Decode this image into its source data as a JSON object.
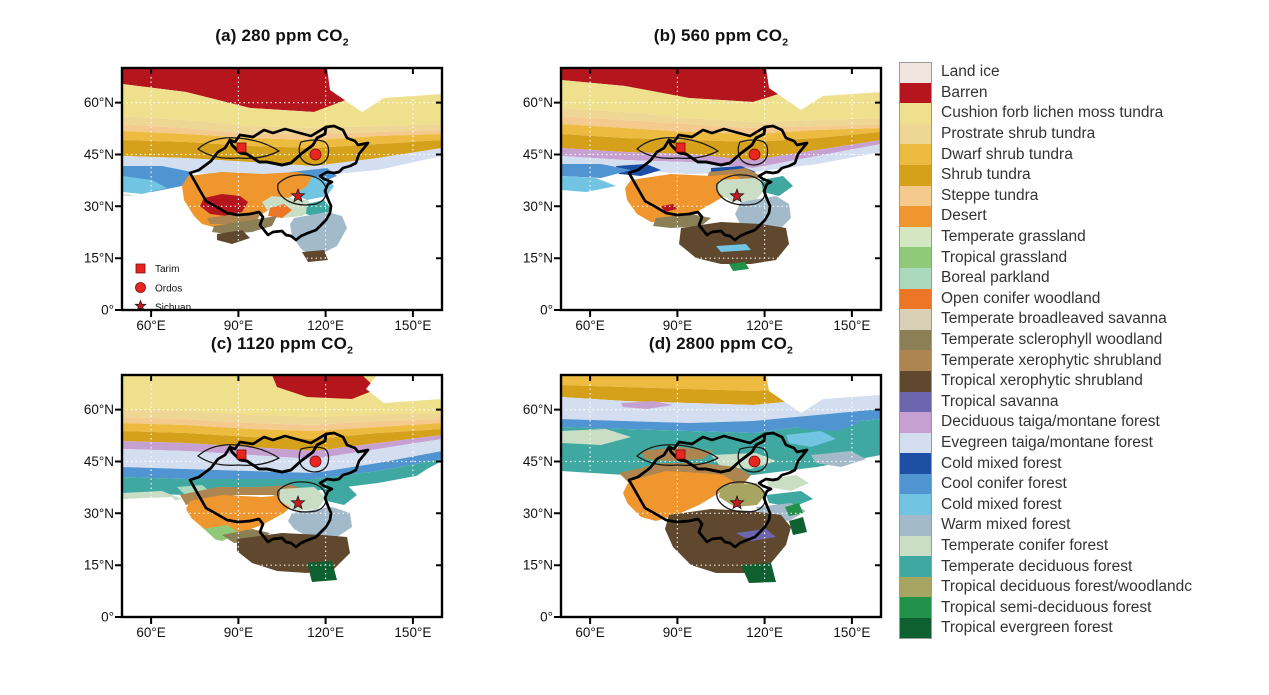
{
  "figure": {
    "background": "#ffffff"
  },
  "panels": [
    {
      "id": "a",
      "title_main": "(a) 280 ppm CO",
      "title_sub": "2"
    },
    {
      "id": "b",
      "title_main": "(b) 560 ppm CO",
      "title_sub": "2"
    },
    {
      "id": "c",
      "title_main": "(c) 1120 ppm CO",
      "title_sub": "2"
    },
    {
      "id": "d",
      "title_main": "(d) 2800 ppm CO",
      "title_sub": "2"
    }
  ],
  "axes": {
    "x_ticks": [
      "60°E",
      "90°E",
      "120°E",
      "150°E"
    ],
    "y_ticks": [
      "0°",
      "15°N",
      "30°N",
      "45°N",
      "60°N"
    ]
  },
  "sites": [
    {
      "name": "Tarim",
      "marker": "square"
    },
    {
      "name": "Ordos",
      "marker": "circle"
    },
    {
      "name": "Sichuan",
      "marker": "star"
    }
  ],
  "marker_colors": {
    "square": "#e8251f",
    "circle": "#e8251f",
    "star": "#c41b20"
  },
  "legend": {
    "items": [
      {
        "label": "Land ice",
        "color": "#f2e4df"
      },
      {
        "label": "Barren",
        "color": "#b5161d"
      },
      {
        "label": "Cushion forb lichen moss tundra",
        "color": "#efe08d"
      },
      {
        "label": "Prostrate shrub tundra",
        "color": "#eed794"
      },
      {
        "label": "Dwarf shrub tundra",
        "color": "#edbb40"
      },
      {
        "label": "Shrub tundra",
        "color": "#d5a11a"
      },
      {
        "label": "Steppe tundra",
        "color": "#f4ca8f"
      },
      {
        "label": "Desert",
        "color": "#f0962e"
      },
      {
        "label": "Temperate grassland",
        "color": "#d2e7c2"
      },
      {
        "label": "Tropical grassland",
        "color": "#8fc979"
      },
      {
        "label": "Boreal parkland",
        "color": "#abd9bd"
      },
      {
        "label": "Open conifer woodland",
        "color": "#ec7526"
      },
      {
        "label": "Temperate broadleaved savanna",
        "color": "#d8d1b8"
      },
      {
        "label": "Temperate sclerophyll woodland",
        "color": "#8a7f55"
      },
      {
        "label": "Temperate xerophytic shrubland",
        "color": "#ad8551"
      },
      {
        "label": "Tropical xerophytic shrubland",
        "color": "#5f482d"
      },
      {
        "label": "Tropical savanna",
        "color": "#6d66ae"
      },
      {
        "label": "Deciduous taiga/montane forest",
        "color": "#c5a0d0"
      },
      {
        "label": "Evegreen taiga/montane forest",
        "color": "#d4def1"
      },
      {
        "label": "Cold mixed forest",
        "color": "#1d50a5"
      },
      {
        "label": "Cool conifer forest",
        "color": "#5095d1"
      },
      {
        "label": "Cold mixed forest",
        "color": "#71c5e3"
      },
      {
        "label": "Warm mixed forest",
        "color": "#a2bac9"
      },
      {
        "label": "Temperate conifer forest",
        "color": "#caddc5"
      },
      {
        "label": "Temperate deciduous forest",
        "color": "#3fa9a1"
      },
      {
        "label": "Tropical deciduous forest/woodlandc",
        "color": "#a7a562"
      },
      {
        "label": "Tropical semi-deciduous forest",
        "color": "#22914a"
      },
      {
        "label": "Tropical evergreen forest",
        "color": "#0f6031"
      }
    ]
  }
}
